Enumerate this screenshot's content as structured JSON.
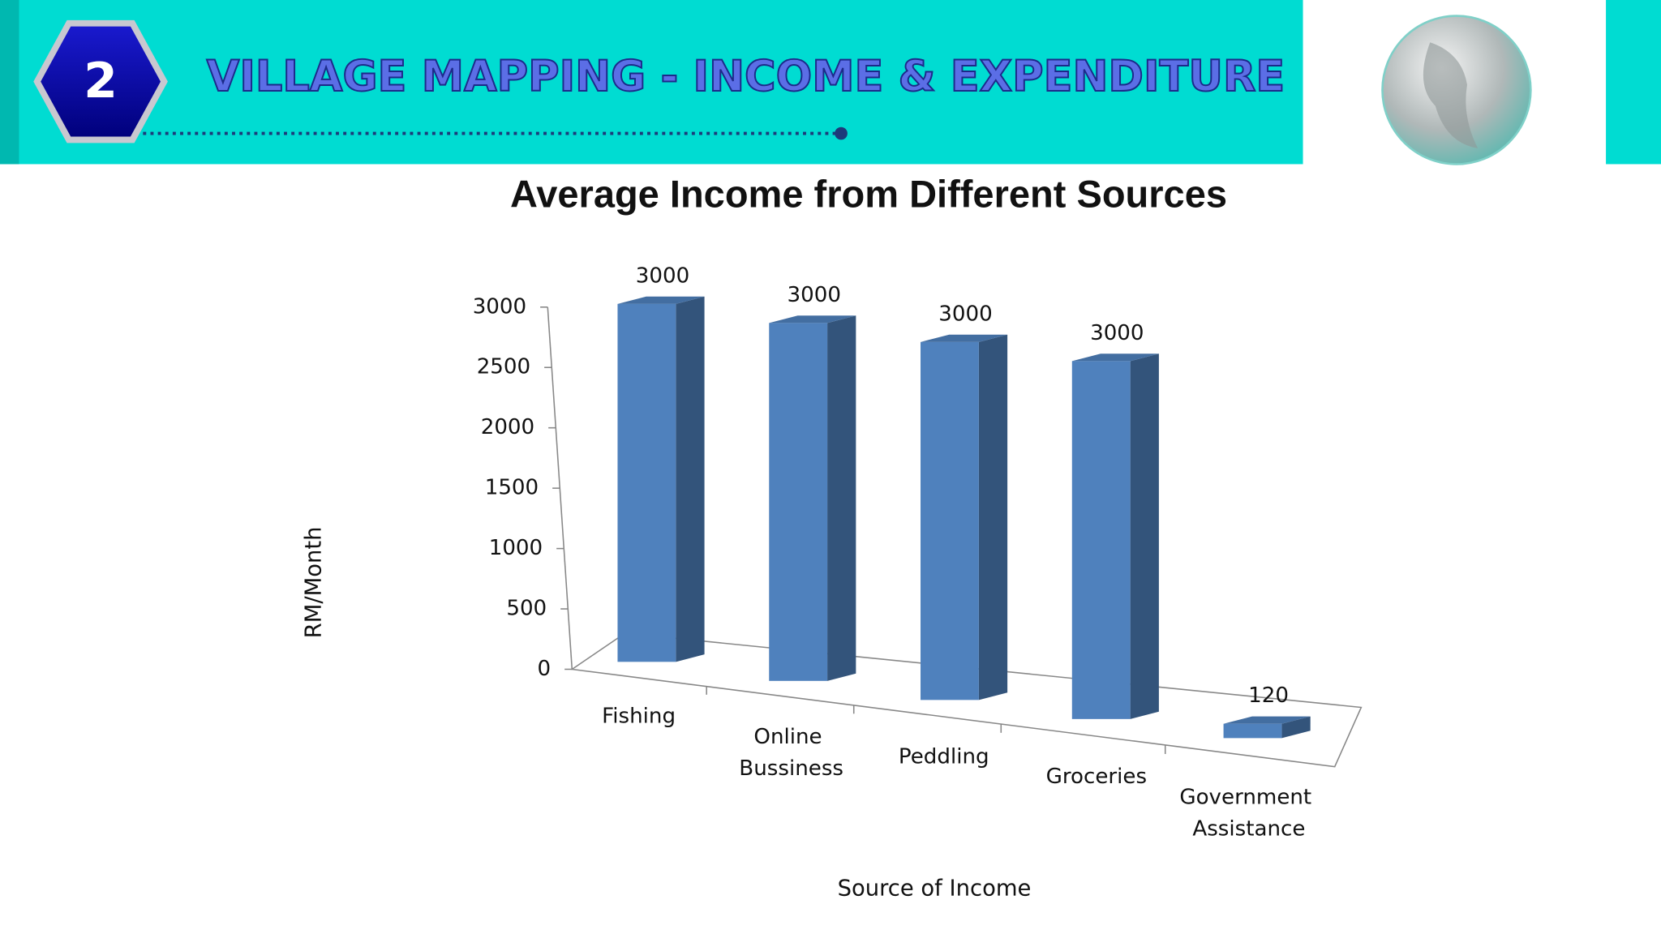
{
  "header": {
    "number": "2",
    "title": "VILLAGE MAPPING - INCOME & EXPENDITURE"
  },
  "chart_data": {
    "type": "bar3d",
    "title": "Average Income from Different Sources",
    "x_label": "Source of Income",
    "y_label": "RM/Month",
    "categories": [
      "Fishing",
      "Online Bussiness",
      "Peddling",
      "Groceries",
      "Government Assistance"
    ],
    "values": [
      3000,
      3000,
      3000,
      3000,
      120
    ],
    "color": "#4f81bd",
    "ylim": [
      0,
      3000
    ],
    "yticks": [
      0,
      500,
      1000,
      1500,
      2000,
      2500,
      3000
    ]
  }
}
